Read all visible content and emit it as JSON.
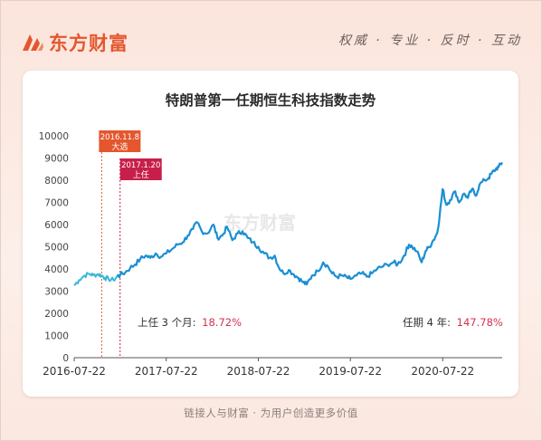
{
  "brand": {
    "name": "东方财富",
    "slogan": "权威 · 专业 · 反时 · 互动"
  },
  "footer": {
    "text": "链接人与财富 · 为用户创造更多价值"
  },
  "colors": {
    "accent": "#e4572e",
    "line": "#1a8fd3",
    "line_early": "#3ab6d9",
    "highlight": "#d4314d"
  },
  "chart_data": {
    "type": "line",
    "title": "特朗普第一任期恒生科技指数走势",
    "xlabel": "",
    "ylabel": "",
    "ylim": [
      0,
      10000
    ],
    "yticks": [
      0,
      1000,
      2000,
      3000,
      4000,
      5000,
      6000,
      7000,
      8000,
      9000,
      10000
    ],
    "xlim": [
      "2016-07-22",
      "2021-03-15"
    ],
    "xticks": [
      "2016-07-22",
      "2017-07-22",
      "2018-07-22",
      "2019-07-22",
      "2020-07-22"
    ],
    "watermark": "东方财富",
    "series": [
      {
        "name": "",
        "points": [
          [
            "2016-07-22",
            3250
          ],
          [
            "2016-08-10",
            3500
          ],
          [
            "2016-09-01",
            3700
          ],
          [
            "2016-09-20",
            3780
          ],
          [
            "2016-10-05",
            3720
          ],
          [
            "2016-10-25",
            3760
          ],
          [
            "2016-11-08",
            3700
          ],
          [
            "2016-11-20",
            3600
          ],
          [
            "2016-12-05",
            3550
          ],
          [
            "2016-12-25",
            3500
          ],
          [
            "2017-01-10",
            3680
          ],
          [
            "2017-01-20",
            3720
          ],
          [
            "2017-02-10",
            3850
          ],
          [
            "2017-03-01",
            4050
          ],
          [
            "2017-03-20",
            4200
          ],
          [
            "2017-04-10",
            4450
          ],
          [
            "2017-05-01",
            4600
          ],
          [
            "2017-05-20",
            4500
          ],
          [
            "2017-06-10",
            4700
          ],
          [
            "2017-07-01",
            4550
          ],
          [
            "2017-07-22",
            4700
          ],
          [
            "2017-08-15",
            4900
          ],
          [
            "2017-09-05",
            5100
          ],
          [
            "2017-09-25",
            5200
          ],
          [
            "2017-10-15",
            5500
          ],
          [
            "2017-11-05",
            5800
          ],
          [
            "2017-11-22",
            6100
          ],
          [
            "2017-12-10",
            5700
          ],
          [
            "2018-01-01",
            5600
          ],
          [
            "2018-01-25",
            6000
          ],
          [
            "2018-02-10",
            5400
          ],
          [
            "2018-03-01",
            5500
          ],
          [
            "2018-03-20",
            5900
          ],
          [
            "2018-04-10",
            5300
          ],
          [
            "2018-05-01",
            5600
          ],
          [
            "2018-05-20",
            5700
          ],
          [
            "2018-06-10",
            5400
          ],
          [
            "2018-06-30",
            5200
          ],
          [
            "2018-07-22",
            5000
          ],
          [
            "2018-08-15",
            4700
          ],
          [
            "2018-09-05",
            4500
          ],
          [
            "2018-09-25",
            4600
          ],
          [
            "2018-10-10",
            4100
          ],
          [
            "2018-10-30",
            3800
          ],
          [
            "2018-11-20",
            3950
          ],
          [
            "2018-12-10",
            3750
          ],
          [
            "2018-12-28",
            3600
          ],
          [
            "2019-01-15",
            3400
          ],
          [
            "2019-01-30",
            3300
          ],
          [
            "2019-02-20",
            3700
          ],
          [
            "2019-03-15",
            3900
          ],
          [
            "2019-04-05",
            4300
          ],
          [
            "2019-04-25",
            4100
          ],
          [
            "2019-05-10",
            3800
          ],
          [
            "2019-05-30",
            3650
          ],
          [
            "2019-06-20",
            3700
          ],
          [
            "2019-07-10",
            3600
          ],
          [
            "2019-07-22",
            3550
          ],
          [
            "2019-08-15",
            3700
          ],
          [
            "2019-09-05",
            3800
          ],
          [
            "2019-09-25",
            3650
          ],
          [
            "2019-10-15",
            3800
          ],
          [
            "2019-11-05",
            4000
          ],
          [
            "2019-11-25",
            4100
          ],
          [
            "2019-12-15",
            4200
          ],
          [
            "2020-01-10",
            4300
          ],
          [
            "2020-01-25",
            4200
          ],
          [
            "2020-02-15",
            4500
          ],
          [
            "2020-02-28",
            4800
          ],
          [
            "2020-03-10",
            5100
          ],
          [
            "2020-03-23",
            5000
          ],
          [
            "2020-04-10",
            4800
          ],
          [
            "2020-04-30",
            4300
          ],
          [
            "2020-05-15",
            4800
          ],
          [
            "2020-05-30",
            5000
          ],
          [
            "2020-06-15",
            5300
          ],
          [
            "2020-06-30",
            5600
          ],
          [
            "2020-07-10",
            6400
          ],
          [
            "2020-07-22",
            7600
          ],
          [
            "2020-08-05",
            6900
          ],
          [
            "2020-08-20",
            7100
          ],
          [
            "2020-09-10",
            7500
          ],
          [
            "2020-09-25",
            7000
          ],
          [
            "2020-10-15",
            7400
          ],
          [
            "2020-10-30",
            7200
          ],
          [
            "2020-11-15",
            7600
          ],
          [
            "2020-11-30",
            7300
          ],
          [
            "2020-12-15",
            7800
          ],
          [
            "2021-01-05",
            8000
          ],
          [
            "2021-01-20",
            8100
          ],
          [
            "2021-02-01",
            8300
          ],
          [
            "2021-02-17",
            8500
          ],
          [
            "2021-03-01",
            8600
          ],
          [
            "2021-03-15",
            8800
          ]
        ]
      }
    ],
    "events": [
      {
        "date": "2016-11-08",
        "label_date": "2016.11.8",
        "label_text": "大选",
        "color": "#e4572e"
      },
      {
        "date": "2017-01-20",
        "label_date": "2017.1.20",
        "label_text": "上任",
        "color": "#c71f4a"
      }
    ],
    "annotations": [
      {
        "label": "上任 3 个月:",
        "value": "18.72%"
      },
      {
        "label": "任期 4 年:",
        "value": "147.78%"
      }
    ]
  }
}
